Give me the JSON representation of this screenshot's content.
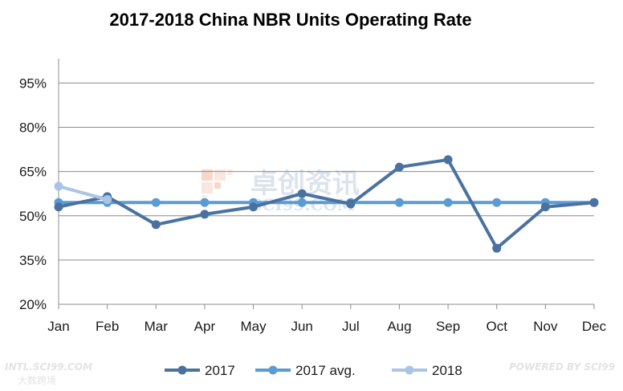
{
  "chart_data": {
    "type": "line",
    "title": "2017-2018 China NBR Units Operating Rate",
    "xlabel": "",
    "ylabel": "",
    "categories": [
      "Jan",
      "Feb",
      "Mar",
      "Apr",
      "May",
      "Jun",
      "Jul",
      "Aug",
      "Sep",
      "Oct",
      "Nov",
      "Dec"
    ],
    "ylim": [
      20,
      100
    ],
    "yticks": [
      20,
      35,
      50,
      65,
      80,
      95
    ],
    "ytick_labels": [
      "20%",
      "35%",
      "50%",
      "65%",
      "80%",
      "95%"
    ],
    "grid": true,
    "legend_position": "bottom",
    "series": [
      {
        "name": "2017",
        "color": "#4a72a0",
        "values": [
          53,
          56.5,
          47,
          50.5,
          53,
          57.5,
          54,
          66.5,
          69,
          39,
          53,
          54.5
        ]
      },
      {
        "name": "2017 avg.",
        "color": "#5b9bd5",
        "values": [
          54.5,
          54.5,
          54.5,
          54.5,
          54.5,
          54.5,
          54.5,
          54.5,
          54.5,
          54.5,
          54.5,
          54.5
        ]
      },
      {
        "name": "2018",
        "color": "#a9c4e4",
        "values": [
          60,
          55.5,
          null,
          null,
          null,
          null,
          null,
          null,
          null,
          null,
          null,
          null
        ]
      }
    ]
  },
  "watermark": {
    "cn": "卓创资讯",
    "en": "SCI99.COM"
  },
  "footer": {
    "left_site": "INTL.SCI99.COM",
    "left_brand": "大数跨境",
    "right": "POWERED BY SCI99"
  }
}
